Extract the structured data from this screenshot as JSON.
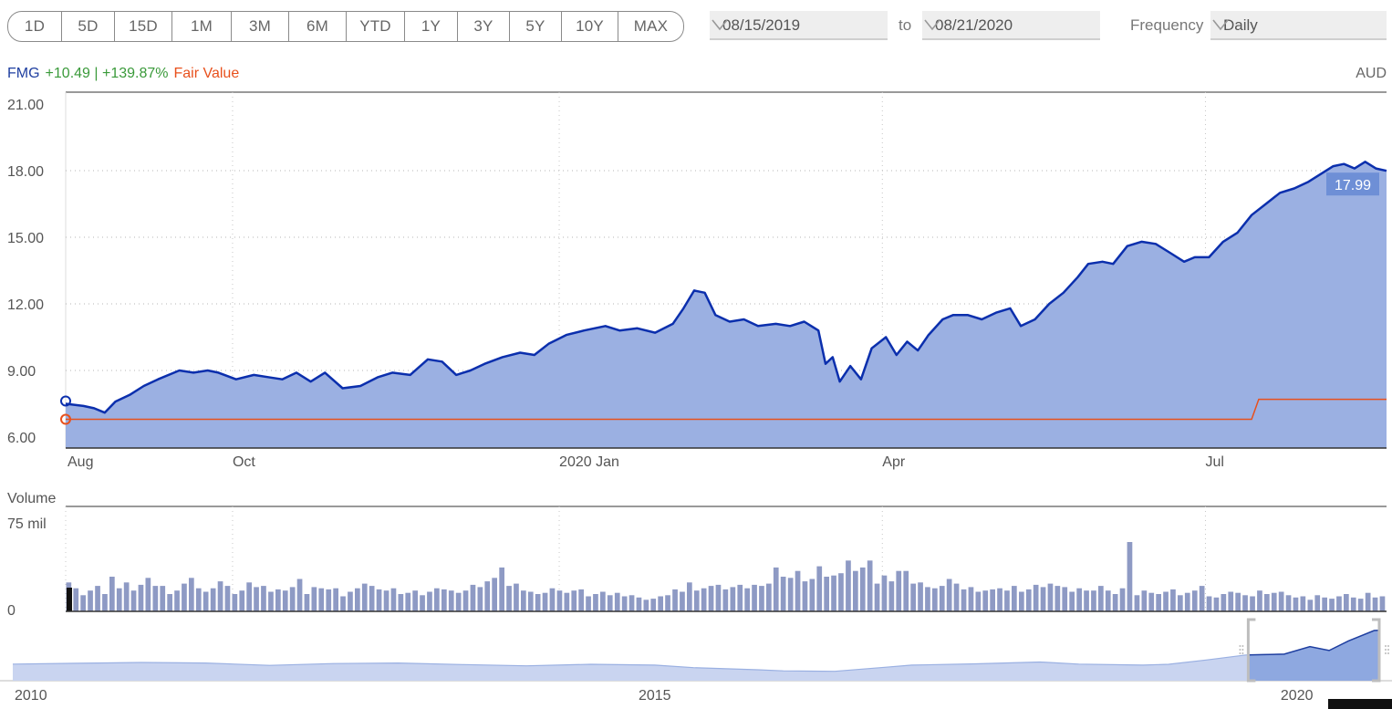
{
  "periods": [
    "1D",
    "5D",
    "15D",
    "1M",
    "3M",
    "6M",
    "YTD",
    "1Y",
    "3Y",
    "5Y",
    "10Y",
    "MAX"
  ],
  "date_range": {
    "start": "08/15/2019",
    "to_label": "to",
    "end": "08/21/2020"
  },
  "frequency": {
    "label": "Frequency",
    "value": "Daily"
  },
  "legend": {
    "ticker": "FMG",
    "change": "+10.49 | +139.87%",
    "fair_value_label": "Fair Value"
  },
  "currency": "AUD",
  "volume_label": "Volume",
  "colors": {
    "price_line": "#0b2fad",
    "price_fill": "#9bb0e2",
    "fair_value": "#e8501c",
    "volume_bar": "#8e9ac4",
    "navigator_fill": "#c9d4f0"
  },
  "chart_data": [
    {
      "type": "area",
      "name": "price",
      "xlim": [
        "2019-08-15",
        "2020-08-21"
      ],
      "ylim": [
        6,
        21
      ],
      "yticks": [
        "21.00",
        "18.00",
        "15.00",
        "12.00",
        "9.00",
        "6.00"
      ],
      "yticks_values": [
        21,
        18,
        15,
        12,
        9,
        6
      ],
      "xticks": [
        {
          "label": "Aug",
          "date": "2019-08-15"
        },
        {
          "label": "Oct",
          "date": "2019-10-01"
        },
        {
          "label": "2020 Jan",
          "date": "2020-01-01"
        },
        {
          "label": "Apr",
          "date": "2020-04-01"
        },
        {
          "label": "Jul",
          "date": "2020-07-01"
        }
      ],
      "grid": true,
      "last_value_label": "17.99",
      "series": [
        {
          "name": "FMG",
          "points": [
            [
              "2019-08-15",
              7.5
            ],
            [
              "2019-08-20",
              7.4
            ],
            [
              "2019-08-23",
              7.3
            ],
            [
              "2019-08-26",
              7.1
            ],
            [
              "2019-08-29",
              7.6
            ],
            [
              "2019-09-02",
              7.9
            ],
            [
              "2019-09-06",
              8.3
            ],
            [
              "2019-09-10",
              8.6
            ],
            [
              "2019-09-16",
              9.0
            ],
            [
              "2019-09-20",
              8.9
            ],
            [
              "2019-09-24",
              9.0
            ],
            [
              "2019-09-27",
              8.9
            ],
            [
              "2019-10-02",
              8.6
            ],
            [
              "2019-10-07",
              8.8
            ],
            [
              "2019-10-11",
              8.7
            ],
            [
              "2019-10-15",
              8.6
            ],
            [
              "2019-10-19",
              8.9
            ],
            [
              "2019-10-23",
              8.5
            ],
            [
              "2019-10-27",
              8.9
            ],
            [
              "2019-11-01",
              8.2
            ],
            [
              "2019-11-06",
              8.3
            ],
            [
              "2019-11-11",
              8.7
            ],
            [
              "2019-11-15",
              8.9
            ],
            [
              "2019-11-20",
              8.8
            ],
            [
              "2019-11-25",
              9.5
            ],
            [
              "2019-11-29",
              9.4
            ],
            [
              "2019-12-03",
              8.8
            ],
            [
              "2019-12-07",
              9.0
            ],
            [
              "2019-12-11",
              9.3
            ],
            [
              "2019-12-16",
              9.6
            ],
            [
              "2019-12-21",
              9.8
            ],
            [
              "2019-12-25",
              9.7
            ],
            [
              "2019-12-29",
              10.2
            ],
            [
              "2020-01-03",
              10.6
            ],
            [
              "2020-01-08",
              10.8
            ],
            [
              "2020-01-14",
              11.0
            ],
            [
              "2020-01-18",
              10.8
            ],
            [
              "2020-01-23",
              10.9
            ],
            [
              "2020-01-28",
              10.7
            ],
            [
              "2020-02-02",
              11.1
            ],
            [
              "2020-02-05",
              11.8
            ],
            [
              "2020-02-08",
              12.6
            ],
            [
              "2020-02-11",
              12.5
            ],
            [
              "2020-02-14",
              11.5
            ],
            [
              "2020-02-18",
              11.2
            ],
            [
              "2020-02-22",
              11.3
            ],
            [
              "2020-02-26",
              11.0
            ],
            [
              "2020-03-02",
              11.1
            ],
            [
              "2020-03-06",
              11.0
            ],
            [
              "2020-03-10",
              11.2
            ],
            [
              "2020-03-14",
              10.8
            ],
            [
              "2020-03-16",
              9.3
            ],
            [
              "2020-03-18",
              9.6
            ],
            [
              "2020-03-20",
              8.5
            ],
            [
              "2020-03-23",
              9.2
            ],
            [
              "2020-03-26",
              8.6
            ],
            [
              "2020-03-29",
              10.0
            ],
            [
              "2020-04-02",
              10.5
            ],
            [
              "2020-04-05",
              9.7
            ],
            [
              "2020-04-08",
              10.3
            ],
            [
              "2020-04-11",
              9.9
            ],
            [
              "2020-04-14",
              10.6
            ],
            [
              "2020-04-18",
              11.3
            ],
            [
              "2020-04-21",
              11.5
            ],
            [
              "2020-04-25",
              11.5
            ],
            [
              "2020-04-29",
              11.3
            ],
            [
              "2020-05-03",
              11.6
            ],
            [
              "2020-05-07",
              11.8
            ],
            [
              "2020-05-10",
              11.0
            ],
            [
              "2020-05-14",
              11.3
            ],
            [
              "2020-05-18",
              12.0
            ],
            [
              "2020-05-22",
              12.5
            ],
            [
              "2020-05-26",
              13.2
            ],
            [
              "2020-05-29",
              13.8
            ],
            [
              "2020-06-02",
              13.9
            ],
            [
              "2020-06-05",
              13.8
            ],
            [
              "2020-06-09",
              14.6
            ],
            [
              "2020-06-13",
              14.8
            ],
            [
              "2020-06-17",
              14.7
            ],
            [
              "2020-06-21",
              14.3
            ],
            [
              "2020-06-25",
              13.9
            ],
            [
              "2020-06-28",
              14.1
            ],
            [
              "2020-07-02",
              14.1
            ],
            [
              "2020-07-06",
              14.8
            ],
            [
              "2020-07-10",
              15.2
            ],
            [
              "2020-07-14",
              16.0
            ],
            [
              "2020-07-18",
              16.5
            ],
            [
              "2020-07-22",
              17.0
            ],
            [
              "2020-07-26",
              17.2
            ],
            [
              "2020-07-30",
              17.5
            ],
            [
              "2020-08-03",
              17.9
            ],
            [
              "2020-08-06",
              18.2
            ],
            [
              "2020-08-09",
              18.3
            ],
            [
              "2020-08-12",
              18.1
            ],
            [
              "2020-08-15",
              18.4
            ],
            [
              "2020-08-18",
              18.1
            ],
            [
              "2020-08-21",
              17.99
            ]
          ]
        },
        {
          "name": "Fair Value",
          "points": [
            [
              "2019-08-15",
              6.8
            ],
            [
              "2020-07-14",
              6.8
            ],
            [
              "2020-07-16",
              7.7
            ],
            [
              "2020-08-21",
              7.7
            ]
          ]
        }
      ]
    },
    {
      "type": "bar",
      "name": "volume",
      "ylim": [
        0,
        75
      ],
      "yticks": [
        "75 mil",
        "0"
      ],
      "yticks_values": [
        75,
        0
      ],
      "unit": "mil",
      "values": [
        25,
        20,
        14,
        18,
        22,
        15,
        30,
        20,
        25,
        18,
        23,
        29,
        22,
        22,
        15,
        18,
        24,
        29,
        20,
        17,
        20,
        26,
        22,
        15,
        18,
        25,
        21,
        22,
        17,
        19,
        18,
        21,
        28,
        15,
        21,
        20,
        19,
        20,
        13,
        17,
        20,
        24,
        22,
        19,
        18,
        20,
        15,
        16,
        18,
        14,
        17,
        20,
        19,
        18,
        16,
        18,
        23,
        21,
        26,
        29,
        38,
        22,
        24,
        18,
        17,
        15,
        16,
        20,
        18,
        16,
        18,
        19,
        13,
        15,
        17,
        14,
        16,
        13,
        14,
        12,
        10,
        11,
        13,
        14,
        19,
        17,
        25,
        18,
        20,
        22,
        23,
        19,
        21,
        23,
        20,
        23,
        22,
        24,
        38,
        30,
        29,
        35,
        26,
        28,
        39,
        30,
        31,
        33,
        44,
        35,
        38,
        44,
        24,
        31,
        26,
        35,
        35,
        24,
        25,
        21,
        20,
        22,
        28,
        24,
        19,
        21,
        17,
        18,
        19,
        20,
        18,
        22,
        17,
        19,
        23,
        21,
        24,
        22,
        21,
        17,
        20,
        18,
        18,
        22,
        18,
        15,
        20,
        60,
        14,
        18,
        16,
        15,
        17,
        19,
        14,
        16,
        18,
        22,
        13,
        12,
        15,
        17,
        16,
        14,
        13,
        18,
        15,
        16,
        17,
        14,
        12,
        13,
        10,
        14,
        12,
        11,
        13,
        15,
        12,
        11,
        16,
        12,
        13
      ]
    },
    {
      "type": "area",
      "name": "navigator",
      "xticks": [
        "2010",
        "2015",
        "2020"
      ],
      "xlim": [
        2010,
        2020.64
      ],
      "selected_range": [
        2019.62,
        2020.64
      ],
      "points": [
        [
          2010,
          5.0
        ],
        [
          2010.5,
          5.3
        ],
        [
          2011,
          5.6
        ],
        [
          2011.5,
          5.4
        ],
        [
          2012,
          4.5
        ],
        [
          2012.5,
          5.2
        ],
        [
          2013,
          5.4
        ],
        [
          2013.5,
          4.8
        ],
        [
          2014,
          4.3
        ],
        [
          2014.5,
          4.9
        ],
        [
          2015,
          4.6
        ],
        [
          2015.3,
          3.6
        ],
        [
          2015.8,
          2.8
        ],
        [
          2016,
          2.4
        ],
        [
          2016.4,
          2.2
        ],
        [
          2016.8,
          3.8
        ],
        [
          2017,
          4.6
        ],
        [
          2017.5,
          5.1
        ],
        [
          2018,
          5.8
        ],
        [
          2018.3,
          5.0
        ],
        [
          2018.8,
          4.6
        ],
        [
          2019,
          4.9
        ],
        [
          2019.3,
          6.6
        ],
        [
          2019.6,
          8.5
        ],
        [
          2019.9,
          8.8
        ],
        [
          2020.1,
          11.7
        ],
        [
          2020.25,
          10.2
        ],
        [
          2020.4,
          13.9
        ],
        [
          2020.6,
          17.9
        ],
        [
          2020.64,
          18.0
        ]
      ]
    }
  ]
}
